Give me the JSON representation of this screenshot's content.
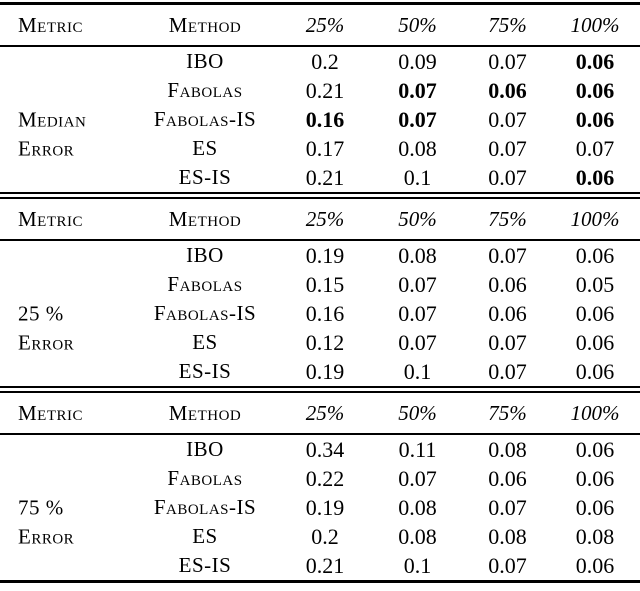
{
  "page": {
    "background_color": "#ffffff",
    "text_color": "#000000",
    "rule_color": "#000000"
  },
  "table": {
    "header": {
      "metric": "Metric",
      "method": "Method",
      "percents": [
        "25%",
        "50%",
        "75%",
        "100%"
      ]
    },
    "sections": [
      {
        "metric_label_lines": [
          "Median",
          "Error"
        ],
        "rows": [
          {
            "method": "IBO",
            "values": [
              "0.2",
              "0.09",
              "0.07",
              "0.06"
            ],
            "bold": [
              false,
              false,
              false,
              true
            ]
          },
          {
            "method": "Fabolas",
            "values": [
              "0.21",
              "0.07",
              "0.06",
              "0.06"
            ],
            "bold": [
              false,
              true,
              true,
              true
            ]
          },
          {
            "method": "Fabolas-IS",
            "values": [
              "0.16",
              "0.07",
              "0.07",
              "0.06"
            ],
            "bold": [
              true,
              true,
              false,
              true
            ]
          },
          {
            "method": "ES",
            "values": [
              "0.17",
              "0.08",
              "0.07",
              "0.07"
            ],
            "bold": [
              false,
              false,
              false,
              false
            ]
          },
          {
            "method": "ES-IS",
            "values": [
              "0.21",
              "0.1",
              "0.07",
              "0.06"
            ],
            "bold": [
              false,
              false,
              false,
              true
            ]
          }
        ]
      },
      {
        "metric_label_lines": [
          "25 %",
          "Error"
        ],
        "rows": [
          {
            "method": "IBO",
            "values": [
              "0.19",
              "0.08",
              "0.07",
              "0.06"
            ],
            "bold": [
              false,
              false,
              false,
              false
            ]
          },
          {
            "method": "Fabolas",
            "values": [
              "0.15",
              "0.07",
              "0.06",
              "0.05"
            ],
            "bold": [
              false,
              false,
              false,
              false
            ]
          },
          {
            "method": "Fabolas-IS",
            "values": [
              "0.16",
              "0.07",
              "0.06",
              "0.06"
            ],
            "bold": [
              false,
              false,
              false,
              false
            ]
          },
          {
            "method": "ES",
            "values": [
              "0.12",
              "0.07",
              "0.07",
              "0.06"
            ],
            "bold": [
              false,
              false,
              false,
              false
            ]
          },
          {
            "method": "ES-IS",
            "values": [
              "0.19",
              "0.1",
              "0.07",
              "0.06"
            ],
            "bold": [
              false,
              false,
              false,
              false
            ]
          }
        ]
      },
      {
        "metric_label_lines": [
          "75 %",
          "Error"
        ],
        "rows": [
          {
            "method": "IBO",
            "values": [
              "0.34",
              "0.11",
              "0.08",
              "0.06"
            ],
            "bold": [
              false,
              false,
              false,
              false
            ]
          },
          {
            "method": "Fabolas",
            "values": [
              "0.22",
              "0.07",
              "0.06",
              "0.06"
            ],
            "bold": [
              false,
              false,
              false,
              false
            ]
          },
          {
            "method": "Fabolas-IS",
            "values": [
              "0.19",
              "0.08",
              "0.07",
              "0.06"
            ],
            "bold": [
              false,
              false,
              false,
              false
            ]
          },
          {
            "method": "ES",
            "values": [
              "0.2",
              "0.08",
              "0.08",
              "0.08"
            ],
            "bold": [
              false,
              false,
              false,
              false
            ]
          },
          {
            "method": "ES-IS",
            "values": [
              "0.21",
              "0.1",
              "0.07",
              "0.06"
            ],
            "bold": [
              false,
              false,
              false,
              false
            ]
          }
        ]
      }
    ]
  }
}
